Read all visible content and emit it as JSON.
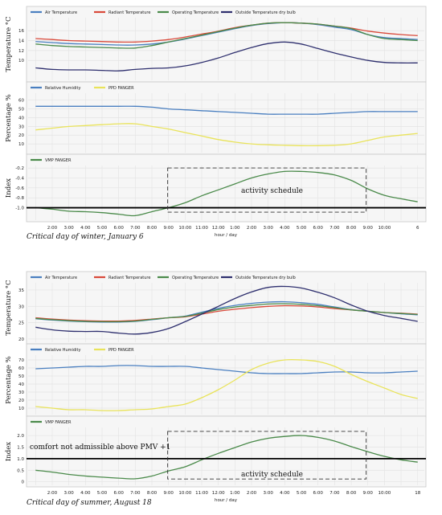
{
  "colors": {
    "air": "#4a7fc0",
    "radiant": "#d9493a",
    "operating": "#4a8a4a",
    "outside": "#2e2f6e",
    "rh": "#4a7fc0",
    "ppd": "#e9e35a",
    "pmv": "#4a8a4a",
    "grid": "#e3e3e3",
    "panel_bg": "#f6f6f6",
    "border": "#c8c8c8"
  },
  "chart_data": [
    {
      "type": "line",
      "ylabel": "Temperature °C",
      "ylim": [
        6,
        18.6
      ],
      "yticks": [
        10,
        12,
        14,
        16
      ],
      "x": [
        1,
        2,
        3,
        4,
        5,
        6,
        7,
        8,
        9,
        10,
        11,
        12,
        13,
        14,
        15,
        16,
        17,
        18,
        19,
        20,
        21,
        22,
        23,
        24
      ],
      "series": [
        {
          "name": "Air Temperature",
          "color_key": "air",
          "values": [
            13.8,
            13.6,
            13.4,
            13.3,
            13.2,
            13.1,
            13.1,
            13.3,
            13.7,
            14.3,
            15.0,
            15.7,
            16.4,
            17.0,
            17.4,
            17.6,
            17.5,
            17.2,
            16.7,
            16.2,
            15.2,
            14.6,
            14.4,
            14.2
          ]
        },
        {
          "name": "Radiant Temperature",
          "color_key": "radiant",
          "values": [
            14.4,
            14.2,
            14.0,
            13.9,
            13.8,
            13.7,
            13.7,
            13.9,
            14.2,
            14.7,
            15.3,
            15.9,
            16.6,
            17.1,
            17.5,
            17.6,
            17.5,
            17.3,
            16.9,
            16.5,
            15.9,
            15.5,
            15.2,
            15.0
          ]
        },
        {
          "name": "Operating Temperature",
          "color_key": "operating",
          "values": [
            13.3,
            13.0,
            12.8,
            12.7,
            12.6,
            12.5,
            12.5,
            13.0,
            13.7,
            14.4,
            15.1,
            15.8,
            16.5,
            17.1,
            17.5,
            17.6,
            17.5,
            17.3,
            16.9,
            16.4,
            15.2,
            14.4,
            14.2,
            14.0
          ]
        },
        {
          "name": "Outside Temperature dry bulb",
          "color_key": "outside",
          "values": [
            8.5,
            8.2,
            8.1,
            8.1,
            8.0,
            7.9,
            8.2,
            8.4,
            8.5,
            8.9,
            9.6,
            10.5,
            11.6,
            12.6,
            13.4,
            13.7,
            13.3,
            12.4,
            11.5,
            10.7,
            10.0,
            9.6,
            9.5,
            9.5
          ]
        }
      ]
    },
    {
      "type": "line",
      "ylabel": "Percentage %",
      "ylim": [
        0,
        68
      ],
      "yticks": [
        10,
        20,
        30,
        40,
        50,
        60
      ],
      "x": [
        1,
        2,
        3,
        4,
        5,
        6,
        7,
        8,
        9,
        10,
        11,
        12,
        13,
        14,
        15,
        16,
        17,
        18,
        19,
        20,
        21,
        22,
        23,
        24
      ],
      "series": [
        {
          "name": "Relative Humidity",
          "color_key": "rh",
          "values": [
            53,
            53,
            53,
            53,
            53,
            53,
            53,
            52,
            50,
            49,
            48,
            47,
            46,
            45,
            44,
            44,
            44,
            44,
            45,
            46,
            47,
            47,
            47,
            47
          ]
        },
        {
          "name": "PPD FANGER",
          "color_key": "ppd",
          "values": [
            26,
            28,
            30,
            31,
            32,
            33,
            33,
            30,
            27,
            23,
            19,
            15,
            12,
            10,
            9,
            8.5,
            8,
            8,
            8.5,
            10,
            14,
            18,
            20,
            22
          ]
        }
      ]
    },
    {
      "type": "line",
      "ylabel": "Index",
      "ylim": [
        -1.25,
        -0.15
      ],
      "yticks": [
        -1.0,
        -0.8,
        -0.6,
        -0.4,
        -0.2
      ],
      "ytick_labels": [
        "-1.0",
        "-0.8",
        "-0.6",
        "-0.4",
        "-0.2"
      ],
      "x": [
        1,
        2,
        3,
        4,
        5,
        6,
        7,
        8,
        9,
        10,
        11,
        12,
        13,
        14,
        15,
        16,
        17,
        18,
        19,
        20,
        21,
        22,
        23,
        24
      ],
      "x_tick_labels": [
        "2:00",
        "3:00",
        "4:00",
        "5:00",
        "6:00",
        "7:00",
        "8:00",
        "9:00",
        "10:00",
        "11:00",
        "12:00",
        "1:00",
        "2:00",
        "3:00",
        "4:00",
        "5:00",
        "6:00",
        "7:00",
        "8:00",
        "9:00",
        "10:00",
        "6"
      ],
      "xlabel": "hour / day",
      "series": [
        {
          "name": "VMP FANGER",
          "color_key": "pmv",
          "values": [
            -1.0,
            -1.03,
            -1.07,
            -1.08,
            -1.1,
            -1.13,
            -1.16,
            -1.08,
            -1.0,
            -0.9,
            -0.76,
            -0.64,
            -0.52,
            -0.4,
            -0.32,
            -0.27,
            -0.27,
            -0.29,
            -0.34,
            -0.45,
            -0.62,
            -0.75,
            -0.82,
            -0.88
          ]
        }
      ],
      "threshold": -1.0,
      "schedule_box": {
        "x": [
          8.95,
          20.9
        ],
        "y": [
          -1.09,
          -0.2
        ]
      },
      "annotations": [
        "activity schedule"
      ]
    },
    {
      "type": "line",
      "ylabel": "Temperature °C",
      "ylim": [
        19,
        37.2
      ],
      "yticks": [
        20,
        25,
        30,
        35
      ],
      "x": [
        1,
        2,
        3,
        4,
        5,
        6,
        7,
        8,
        9,
        10,
        11,
        12,
        13,
        14,
        15,
        16,
        17,
        18,
        19,
        20,
        21,
        22,
        23,
        24
      ],
      "series": [
        {
          "name": "Air Temperature",
          "color_key": "air",
          "values": [
            26.2,
            25.8,
            25.5,
            25.3,
            25.2,
            25.2,
            25.4,
            25.9,
            26.5,
            27.0,
            28.2,
            29.4,
            30.3,
            30.9,
            31.3,
            31.4,
            31.1,
            30.6,
            29.8,
            29.0,
            28.5,
            28.1,
            27.7,
            27.4
          ]
        },
        {
          "name": "Radiant Temperature",
          "color_key": "radiant",
          "values": [
            26.5,
            26.1,
            25.8,
            25.6,
            25.5,
            25.5,
            25.7,
            26.1,
            26.5,
            26.8,
            27.6,
            28.5,
            29.1,
            29.6,
            30.0,
            30.2,
            30.1,
            29.8,
            29.3,
            28.9,
            28.5,
            28.1,
            27.9,
            27.6
          ]
        },
        {
          "name": "Operating Temperature",
          "color_key": "operating",
          "values": [
            26.3,
            25.9,
            25.6,
            25.4,
            25.3,
            25.3,
            25.5,
            26.0,
            26.5,
            26.9,
            27.9,
            29.0,
            29.8,
            30.3,
            30.7,
            30.8,
            30.6,
            30.2,
            29.6,
            28.9,
            28.5,
            28.1,
            27.8,
            27.5
          ]
        },
        {
          "name": "Outside Temperature dry bulb",
          "color_key": "outside",
          "values": [
            23.6,
            22.8,
            22.4,
            22.3,
            22.3,
            21.8,
            21.5,
            22.0,
            23.2,
            25.3,
            27.6,
            30.0,
            32.4,
            34.4,
            35.8,
            36.1,
            35.6,
            34.3,
            32.6,
            30.4,
            28.5,
            27.2,
            26.3,
            25.4
          ]
        }
      ]
    },
    {
      "type": "line",
      "ylabel": "Percentage %",
      "ylim": [
        2,
        76
      ],
      "yticks": [
        10,
        20,
        30,
        40,
        50,
        60,
        70
      ],
      "x": [
        1,
        2,
        3,
        4,
        5,
        6,
        7,
        8,
        9,
        10,
        11,
        12,
        13,
        14,
        15,
        16,
        17,
        18,
        19,
        20,
        21,
        22,
        23,
        24
      ],
      "series": [
        {
          "name": "Relative Humidity",
          "color_key": "rh",
          "values": [
            59,
            60,
            61,
            62,
            62,
            63,
            63,
            62,
            62,
            62,
            60,
            58,
            56,
            54,
            53,
            53,
            53,
            54,
            55,
            55,
            54,
            54,
            55,
            56
          ]
        },
        {
          "name": "PPD FANGER",
          "color_key": "ppd",
          "values": [
            12,
            10,
            8,
            8,
            7,
            7,
            8,
            9,
            12,
            15,
            23,
            33,
            45,
            58,
            66,
            70,
            70,
            68,
            62,
            52,
            43,
            35,
            27,
            22
          ]
        }
      ]
    },
    {
      "type": "line",
      "ylabel": "Index",
      "ylim": [
        -0.15,
        2.35
      ],
      "yticks": [
        0.0,
        0.5,
        1.0,
        1.5,
        2.0
      ],
      "ytick_labels": [
        "0",
        "0.5",
        "1.0",
        "1.5",
        "2.0"
      ],
      "x": [
        1,
        2,
        3,
        4,
        5,
        6,
        7,
        8,
        9,
        10,
        11,
        12,
        13,
        14,
        15,
        16,
        17,
        18,
        19,
        20,
        21,
        22,
        23,
        24
      ],
      "x_tick_labels": [
        "2:00",
        "3:00",
        "4:00",
        "5:00",
        "6:00",
        "7:00",
        "8:00",
        "9:00",
        "10:00",
        "11:00",
        "12:00",
        "1:00",
        "2:00",
        "3:00",
        "4:00",
        "5:00",
        "6:00",
        "7:00",
        "8:00",
        "9:00",
        "10:00",
        "18"
      ],
      "xlabel": "hour / day",
      "series": [
        {
          "name": "VMP FANGER",
          "color_key": "pmv",
          "values": [
            0.5,
            0.42,
            0.32,
            0.25,
            0.2,
            0.16,
            0.13,
            0.25,
            0.47,
            0.65,
            0.95,
            1.23,
            1.48,
            1.72,
            1.88,
            1.96,
            2.0,
            1.92,
            1.76,
            1.52,
            1.3,
            1.1,
            0.95,
            0.85
          ]
        }
      ],
      "threshold": 1.0,
      "schedule_box": {
        "x": [
          8.95,
          20.9
        ],
        "y": [
          0.12,
          2.18
        ]
      },
      "annotations": [
        "comfort not admissible above PMV +1",
        "activity schedule"
      ]
    }
  ],
  "captions": {
    "winter": "Critical day of winter, January 6",
    "summer": "Critical day of summer, August 18"
  }
}
